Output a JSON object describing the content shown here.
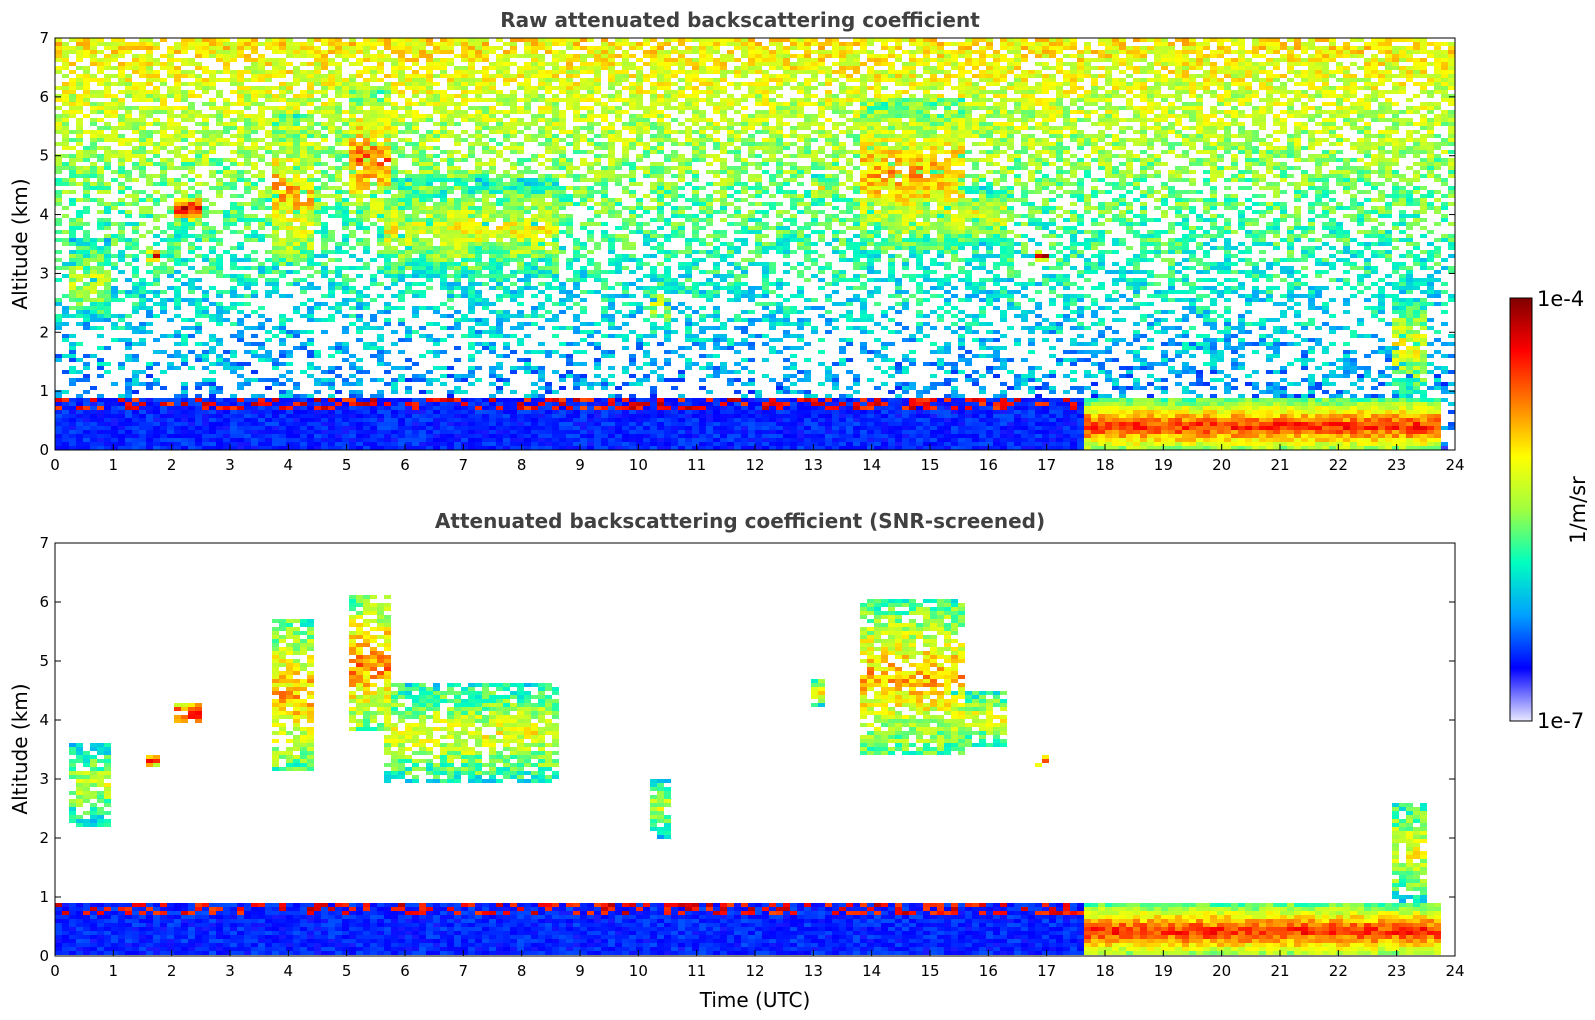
{
  "chart_data": [
    {
      "type": "heatmap",
      "title": "Raw attenuated backscattering coefficient",
      "xlabel": "",
      "ylabel": "Altitude (km)",
      "xlim": [
        0,
        24
      ],
      "ylim": [
        0,
        7
      ],
      "xticks": [
        "0",
        "1",
        "2",
        "3",
        "4",
        "5",
        "6",
        "7",
        "8",
        "9",
        "10",
        "11",
        "12",
        "13",
        "14",
        "15",
        "16",
        "17",
        "18",
        "19",
        "20",
        "21",
        "22",
        "23",
        "24"
      ],
      "yticks": [
        "0",
        "1",
        "2",
        "3",
        "4",
        "5",
        "6",
        "7"
      ],
      "screened": false,
      "cloud_features": [
        {
          "t_start": 0.2,
          "t_end": 0.9,
          "alt_base": 2.2,
          "alt_top": 3.6,
          "level": 0.55
        },
        {
          "t_start": 1.6,
          "t_end": 1.8,
          "alt_base": 3.2,
          "alt_top": 3.4,
          "level": 0.9
        },
        {
          "t_start": 2.0,
          "t_end": 2.5,
          "alt_base": 3.9,
          "alt_top": 4.3,
          "level": 0.9
        },
        {
          "t_start": 3.7,
          "t_end": 4.4,
          "alt_base": 3.1,
          "alt_top": 5.7,
          "level": 0.7
        },
        {
          "t_start": 5.1,
          "t_end": 5.7,
          "alt_base": 3.8,
          "alt_top": 6.1,
          "level": 0.75
        },
        {
          "t_start": 5.6,
          "t_end": 8.6,
          "alt_base": 2.9,
          "alt_top": 4.6,
          "level": 0.6
        },
        {
          "t_start": 10.2,
          "t_end": 10.6,
          "alt_base": 2.0,
          "alt_top": 3.0,
          "level": 0.55
        },
        {
          "t_start": 12.9,
          "t_end": 13.2,
          "alt_base": 4.2,
          "alt_top": 4.7,
          "level": 0.6
        },
        {
          "t_start": 13.8,
          "t_end": 15.6,
          "alt_base": 3.4,
          "alt_top": 6.0,
          "level": 0.7
        },
        {
          "t_start": 15.4,
          "t_end": 16.3,
          "alt_base": 3.5,
          "alt_top": 4.5,
          "level": 0.6
        },
        {
          "t_start": 16.8,
          "t_end": 17.0,
          "alt_base": 3.2,
          "alt_top": 3.4,
          "level": 0.9
        },
        {
          "t_start": 22.9,
          "t_end": 23.5,
          "alt_base": 0.9,
          "alt_top": 2.6,
          "level": 0.6
        }
      ],
      "boundary_layer": {
        "t_start": 0,
        "t_end": 23.8,
        "top_km": 0.9,
        "level": 0.15
      },
      "aerosol_layer": {
        "t_start": 17.6,
        "t_end": 23.8,
        "alt_base": 0.0,
        "alt_top": 0.9,
        "peak_alt": 0.4,
        "level": 0.85
      }
    },
    {
      "type": "heatmap",
      "title": "Attenuated backscattering coefficient (SNR-screened)",
      "xlabel": "Time (UTC)",
      "ylabel": "Altitude (km)",
      "xlim": [
        0,
        24
      ],
      "ylim": [
        0,
        7
      ],
      "xticks": [
        "0",
        "1",
        "2",
        "3",
        "4",
        "5",
        "6",
        "7",
        "8",
        "9",
        "10",
        "11",
        "12",
        "13",
        "14",
        "15",
        "16",
        "17",
        "18",
        "19",
        "20",
        "21",
        "22",
        "23",
        "24"
      ],
      "yticks": [
        "0",
        "1",
        "2",
        "3",
        "4",
        "5",
        "6",
        "7"
      ],
      "screened": true
    }
  ],
  "colorbar": {
    "label": "1/m/sr",
    "max_label": "1e-4",
    "min_label": "1e-7",
    "colors": [
      "#e8e8ff",
      "#0000ff",
      "#00a0ff",
      "#00ffc0",
      "#a0ff40",
      "#ffff00",
      "#ff8000",
      "#ff0000",
      "#800000"
    ]
  }
}
